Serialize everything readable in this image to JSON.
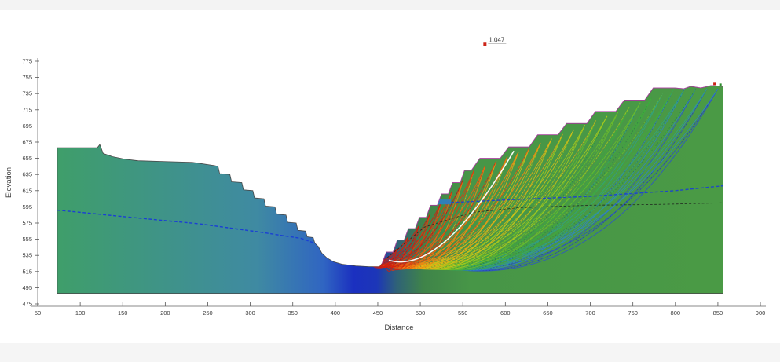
{
  "app": {
    "background": "#ffffff",
    "top_strip_color": "#f3f3f3",
    "bottom_strip_color": "#f5f5f5"
  },
  "chart_data": {
    "type": "area",
    "title": "",
    "xlabel": "Distance",
    "ylabel": "Elevation",
    "xlim": [
      50,
      900
    ],
    "ylim": [
      475,
      775
    ],
    "grid": false,
    "x_ticks": [
      50,
      100,
      150,
      200,
      250,
      300,
      350,
      400,
      450,
      500,
      550,
      600,
      650,
      700,
      750,
      800,
      850,
      900
    ],
    "y_ticks": [
      475,
      495,
      515,
      535,
      555,
      575,
      595,
      615,
      635,
      655,
      675,
      695,
      715,
      735,
      755,
      775
    ],
    "axis_color": "#8a8a8a",
    "tick_color": "#555555",
    "label_color": "#3a3a3a",
    "annotation": {
      "text": "1.047",
      "x": 576,
      "y": 800,
      "marker_color": "#cc2518",
      "text_color": "#333333"
    },
    "terrain": {
      "base_elevation": 488,
      "outline_color": "#474747",
      "profile": [
        [
          73,
          668
        ],
        [
          120,
          668
        ],
        [
          123,
          672
        ],
        [
          127,
          661
        ],
        [
          138,
          657
        ],
        [
          152,
          654
        ],
        [
          168,
          652
        ],
        [
          200,
          651
        ],
        [
          232,
          650
        ],
        [
          258,
          646
        ],
        [
          262,
          645
        ],
        [
          264,
          636
        ],
        [
          276,
          635
        ],
        [
          278,
          626
        ],
        [
          290,
          625
        ],
        [
          292,
          616
        ],
        [
          303,
          615
        ],
        [
          305,
          606
        ],
        [
          316,
          605
        ],
        [
          318,
          596
        ],
        [
          329,
          595
        ],
        [
          331,
          586
        ],
        [
          342,
          585
        ],
        [
          344,
          576
        ],
        [
          354,
          575
        ],
        [
          356,
          566
        ],
        [
          365,
          565
        ],
        [
          367,
          558
        ],
        [
          374,
          557
        ],
        [
          376,
          550
        ],
        [
          380,
          546
        ],
        [
          384,
          538
        ],
        [
          390,
          532
        ],
        [
          398,
          527
        ],
        [
          408,
          524
        ],
        [
          424,
          522
        ],
        [
          440,
          521
        ],
        [
          452,
          521
        ],
        [
          455,
          525
        ],
        [
          460,
          539
        ],
        [
          468,
          539
        ],
        [
          473,
          554
        ],
        [
          481,
          554
        ],
        [
          486,
          568
        ],
        [
          494,
          568
        ],
        [
          499,
          582
        ],
        [
          507,
          582
        ],
        [
          512,
          597
        ],
        [
          520,
          597
        ],
        [
          525,
          611
        ],
        [
          533,
          611
        ],
        [
          538,
          625
        ],
        [
          547,
          625
        ],
        [
          552,
          640
        ],
        [
          560,
          640
        ],
        [
          570,
          655
        ],
        [
          594,
          655
        ],
        [
          604,
          669
        ],
        [
          628,
          669
        ],
        [
          638,
          684
        ],
        [
          662,
          684
        ],
        [
          672,
          698
        ],
        [
          696,
          698
        ],
        [
          706,
          713
        ],
        [
          730,
          713
        ],
        [
          740,
          727
        ],
        [
          764,
          727
        ],
        [
          774,
          742
        ],
        [
          799,
          742
        ],
        [
          810,
          741
        ],
        [
          818,
          744
        ],
        [
          830,
          742
        ],
        [
          842,
          745
        ],
        [
          856,
          744
        ]
      ],
      "gradient_stops": [
        [
          0.0,
          "#3f9e6a"
        ],
        [
          0.3,
          "#3f8aa2"
        ],
        [
          0.4,
          "#3065c2"
        ],
        [
          0.445,
          "#1b30c0"
        ],
        [
          0.48,
          "#1c36b8"
        ],
        [
          0.51,
          "#2f6277"
        ],
        [
          0.55,
          "#3f8449"
        ],
        [
          0.62,
          "#479647"
        ],
        [
          1.0,
          "#4a9a45"
        ]
      ]
    },
    "water_table": {
      "color": "#1a3fd4",
      "style": "dashed",
      "left_segment": [
        [
          73,
          591
        ],
        [
          160,
          582
        ],
        [
          240,
          574
        ],
        [
          310,
          564
        ],
        [
          360,
          556
        ],
        [
          384,
          547
        ],
        [
          398,
          532
        ]
      ],
      "right_segment": [
        [
          530,
          600
        ],
        [
          610,
          604
        ],
        [
          700,
          608
        ],
        [
          800,
          615
        ],
        [
          856,
          621
        ]
      ]
    },
    "material_boundary": {
      "color": "#1c1c1c",
      "style": "dashed",
      "points": [
        [
          461,
          532
        ],
        [
          505,
          570
        ],
        [
          560,
          588
        ],
        [
          616,
          594
        ],
        [
          700,
          597
        ],
        [
          780,
          598
        ],
        [
          856,
          600
        ]
      ]
    },
    "critical_surface": {
      "color": "#ffffff",
      "start": [
        463,
        529
      ],
      "control": [
        524,
        510
      ],
      "end": [
        610,
        664
      ]
    },
    "slope_face_trace": {
      "color": "#cf3fc0",
      "from_distance": 455,
      "to_distance": 856
    },
    "bench_pond": {
      "color": "#2e7fc0",
      "points": [
        [
          520,
          598
        ],
        [
          536,
          598
        ],
        [
          536,
          604
        ],
        [
          520,
          604
        ]
      ]
    },
    "crest_markers": [
      {
        "x": 846,
        "y": 747,
        "color": "#cc2518"
      },
      {
        "x": 853,
        "y": 746,
        "color": "#2c8c2c"
      }
    ],
    "slip_surfaces": {
      "count_entries": 30,
      "arcs_per_entry": 3,
      "entry_range": [
        472,
        850
      ],
      "toe_base": 426,
      "toe_span": 55,
      "toe_step": 16,
      "toe_elevation": 523,
      "depth_base": 4,
      "depth_k": 9,
      "depth_u": 26,
      "control_t": 0.58,
      "face_model": {
        "toe": [
          455,
          525
        ],
        "knee": [
          560,
          640
        ],
        "crest_elev": 742,
        "g1": 1.095,
        "g2": 0.427
      },
      "palette": [
        "#d21d0e",
        "#e23a0c",
        "#ee5f0e",
        "#f4850f",
        "#f2ab12",
        "#ddc214",
        "#abcb1b",
        "#6dbd2a",
        "#3ead3d",
        "#2fa386",
        "#2f86c4",
        "#2b50cc"
      ],
      "overlay_color": "#14235e"
    }
  }
}
